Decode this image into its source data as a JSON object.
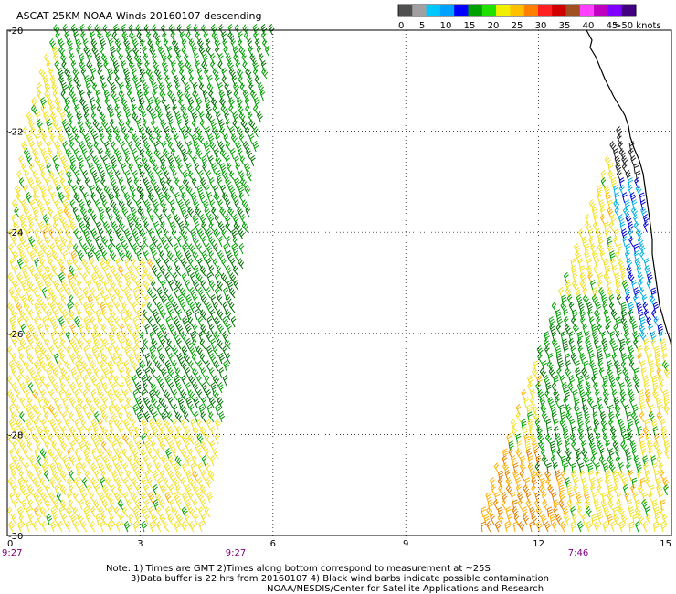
{
  "title": "ASCAT 25KM NOAA Winds 20160107 descending",
  "legend": {
    "ticks": [
      "0",
      "5",
      "10",
      "15",
      "20",
      "25",
      "30",
      "35",
      "40",
      "45",
      ">50 knots"
    ],
    "colors": [
      "#505050",
      "#a0a0a0",
      "#00c8ff",
      "#00a0ff",
      "#0000ff",
      "#00a000",
      "#20e000",
      "#f0f000",
      "#ffc000",
      "#ff8000",
      "#ff2020",
      "#d00000",
      "#a05020",
      "#ff40ff",
      "#c000c0",
      "#8000ff",
      "#400080"
    ]
  },
  "axes": {
    "x_ticks": [
      "0",
      "3",
      "6",
      "9",
      "12",
      "15"
    ],
    "x_values": [
      0,
      3,
      6,
      9,
      12,
      15
    ],
    "y_ticks": [
      "-20",
      "-22",
      "-24",
      "-26",
      "-28",
      "-30"
    ],
    "y_values": [
      -20,
      -22,
      -24,
      -26,
      -28,
      -30
    ]
  },
  "pass_times": [
    "9:27",
    "9:27",
    "7:46"
  ],
  "notes": [
    "Note: 1) Times are GMT 2)Times along bottom correspond to measurement at ~25S",
    "3)Data buffer is 22 hrs from 20160107 4) Black wind barbs indicate possible contamination",
    "NOAA/NESDIS/Center for Satellite Applications and Research"
  ],
  "barb_colors": {
    "yellow": "#f0e020",
    "green": "#00a000",
    "dark_green": "#007000",
    "orange": "#ffb000",
    "dark_orange": "#e08000",
    "cyan": "#00b0e0",
    "blue": "#0000d0",
    "black": "#202020"
  },
  "coastline_color": "#000000",
  "time_label_color": "#800080"
}
